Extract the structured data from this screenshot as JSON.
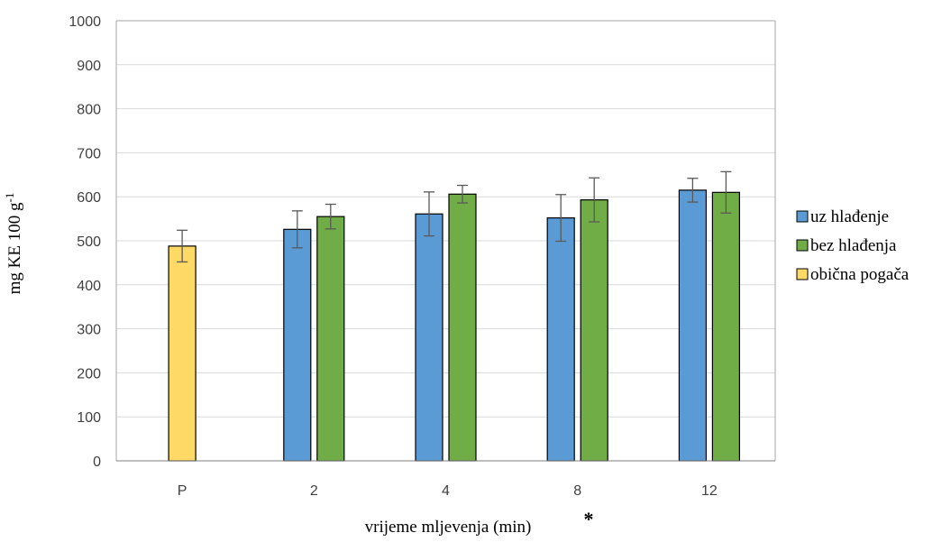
{
  "chart_data": {
    "type": "bar",
    "categories": [
      "P",
      "2",
      "4",
      "8",
      "12"
    ],
    "series": [
      {
        "name": "uz hlađenje",
        "color": "#5b9bd5",
        "values": [
          null,
          526,
          561,
          552,
          615
        ],
        "errors": [
          null,
          42,
          50,
          53,
          27
        ]
      },
      {
        "name": "bez hlađenja",
        "color": "#70ad47",
        "values": [
          null,
          555,
          606,
          593,
          610
        ],
        "errors": [
          null,
          28,
          20,
          50,
          47
        ]
      },
      {
        "name": "obična pogača",
        "color": "#ffd966",
        "values": [
          488,
          null,
          null,
          null,
          null
        ],
        "errors": [
          36,
          null,
          null,
          null,
          null
        ]
      }
    ],
    "xlabel": "vrijeme mljevenja (min)",
    "ylabel": "mg KE 100 g",
    "ylabel_superscript": "-1",
    "annotation": "*",
    "ylim": [
      0,
      1000
    ],
    "yticks": [
      0,
      100,
      200,
      300,
      400,
      500,
      600,
      700,
      800,
      900,
      1000
    ],
    "grid": true,
    "legend_position": "right"
  }
}
